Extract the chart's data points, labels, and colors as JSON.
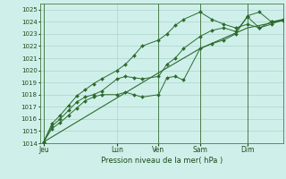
{
  "bg_color": "#cff0ea",
  "grid_color": "#aad4cc",
  "line_color": "#2d6a2d",
  "vline_color": "#4a7a4a",
  "title": "Pression niveau de la mer( hPa )",
  "ylim": [
    1014,
    1025.5
  ],
  "xlim": [
    0,
    20.5
  ],
  "yticks": [
    1014,
    1015,
    1016,
    1017,
    1018,
    1019,
    1020,
    1021,
    1022,
    1023,
    1024,
    1025
  ],
  "xtick_positions": [
    0.3,
    6.5,
    10.0,
    13.5,
    17.5
  ],
  "xtick_labels": [
    "Jeu",
    "Lun",
    "Ven",
    "Sam",
    "Dim"
  ],
  "vlines": [
    0.3,
    10.0,
    13.5,
    17.5
  ],
  "series1_x": [
    0.3,
    1.0,
    1.7,
    2.4,
    3.1,
    3.8,
    4.5,
    5.2,
    6.5,
    7.2,
    7.9,
    8.6,
    10.0,
    10.7,
    11.4,
    12.1,
    13.5,
    14.5,
    15.5,
    16.5,
    17.5,
    18.5,
    19.5,
    20.5
  ],
  "series1_y": [
    1014.1,
    1015.2,
    1015.7,
    1016.3,
    1016.9,
    1017.5,
    1017.8,
    1018.0,
    1018.0,
    1018.2,
    1018.0,
    1017.8,
    1018.0,
    1019.4,
    1019.5,
    1019.2,
    1021.8,
    1022.2,
    1022.5,
    1023.0,
    1024.5,
    1024.8,
    1024.0,
    1024.1
  ],
  "series2_x": [
    0.3,
    1.0,
    1.7,
    2.4,
    3.1,
    3.8,
    4.5,
    5.2,
    6.5,
    7.2,
    7.9,
    8.6,
    10.0,
    10.7,
    11.4,
    12.1,
    13.5,
    14.5,
    15.5,
    16.5,
    17.5,
    18.5,
    19.5,
    20.5
  ],
  "series2_y": [
    1014.1,
    1015.4,
    1016.0,
    1016.7,
    1017.4,
    1017.8,
    1018.0,
    1018.3,
    1019.3,
    1019.5,
    1019.4,
    1019.3,
    1019.5,
    1020.5,
    1021.0,
    1021.8,
    1022.8,
    1023.3,
    1023.5,
    1023.2,
    1024.4,
    1023.5,
    1023.8,
    1024.2
  ],
  "series3_x": [
    0.3,
    1.0,
    1.7,
    2.4,
    3.1,
    3.8,
    4.5,
    5.2,
    6.5,
    7.2,
    7.9,
    8.6,
    10.0,
    10.7,
    11.4,
    12.1,
    13.5,
    14.5,
    15.5,
    16.5,
    17.5,
    18.5,
    19.5,
    20.5
  ],
  "series3_y": [
    1014.1,
    1015.6,
    1016.3,
    1017.1,
    1017.9,
    1018.4,
    1018.9,
    1019.3,
    1020.0,
    1020.5,
    1021.2,
    1022.0,
    1022.5,
    1023.0,
    1023.7,
    1024.2,
    1024.8,
    1024.2,
    1023.8,
    1023.5,
    1023.8,
    1023.5,
    1024.0,
    1024.2
  ],
  "series4_x": [
    0.3,
    10.0,
    13.5,
    17.5,
    20.5
  ],
  "series4_y": [
    1014.1,
    1019.8,
    1021.8,
    1023.5,
    1024.1
  ]
}
